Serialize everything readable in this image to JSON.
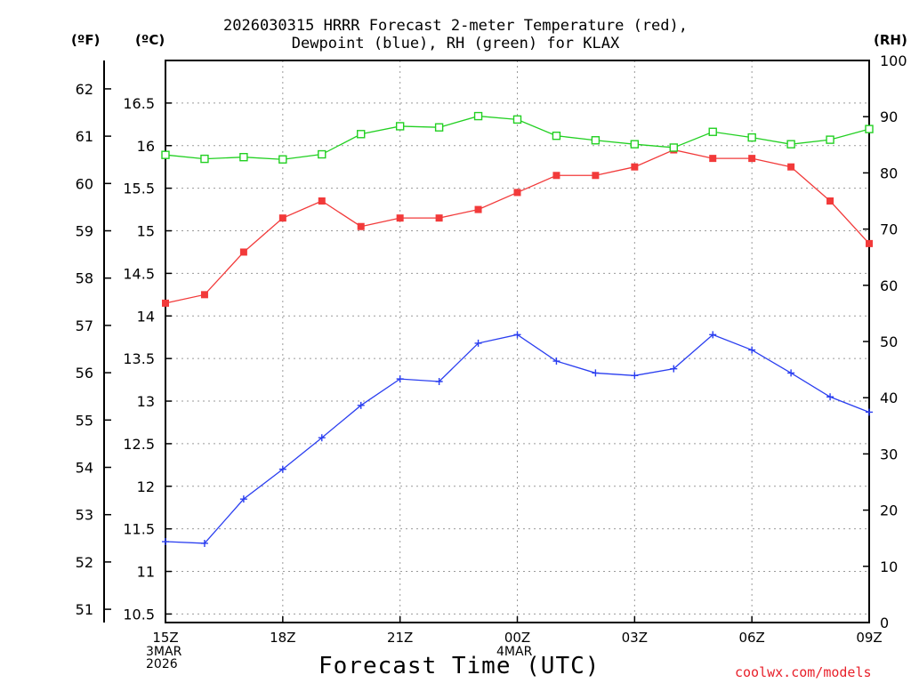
{
  "chart_data": {
    "type": "line",
    "title": [
      "2026030315 HRRR Forecast 2-meter Temperature (red),",
      "Dewpoint (blue), RH (green) for KLAX"
    ],
    "xlabel": "Forecast Time (UTC)",
    "units": {
      "fahrenheit": "(ºF)",
      "celsius": "(ºC)",
      "rh": "(RH)"
    },
    "x_ticks": [
      "15Z",
      "18Z",
      "21Z",
      "00Z",
      "03Z",
      "06Z",
      "09Z"
    ],
    "x_tick_hours": [
      0,
      3,
      6,
      9,
      12,
      15,
      18
    ],
    "date_labels": {
      "start": [
        "3MAR",
        "2026"
      ],
      "midnight": [
        "4MAR"
      ]
    },
    "hours": [
      0,
      1,
      2,
      3,
      4,
      5,
      6,
      7,
      8,
      9,
      10,
      11,
      12,
      13,
      14,
      15,
      16,
      17,
      18
    ],
    "celsius_axis": {
      "range": [
        10.4,
        17.0
      ],
      "ticks": [
        10.5,
        11,
        11.5,
        12,
        12.5,
        13,
        13.5,
        14,
        14.5,
        15,
        15.5,
        16,
        16.5
      ]
    },
    "fahrenheit_axis": {
      "ticks": [
        51,
        52,
        53,
        54,
        55,
        56,
        57,
        58,
        59,
        60,
        61,
        62
      ]
    },
    "rh_axis": {
      "range": [
        0,
        100
      ],
      "ticks": [
        0,
        10,
        20,
        30,
        40,
        50,
        60,
        70,
        80,
        90,
        100
      ]
    },
    "series": [
      {
        "name": "Temperature",
        "axis": "celsius",
        "color": "#f23a3a",
        "marker": "filled-square",
        "values": [
          14.15,
          14.25,
          14.75,
          15.15,
          15.35,
          15.05,
          15.15,
          15.15,
          15.25,
          15.45,
          15.65,
          15.65,
          15.75,
          15.95,
          15.85,
          15.85,
          15.75,
          15.35,
          14.85
        ]
      },
      {
        "name": "Dewpoint",
        "axis": "celsius",
        "color": "#2a3ef0",
        "marker": "plus",
        "values": [
          11.35,
          11.33,
          11.85,
          12.2,
          12.57,
          12.95,
          13.26,
          13.23,
          13.68,
          13.78,
          13.47,
          13.33,
          13.3,
          13.38,
          13.78,
          13.6,
          13.33,
          13.05,
          12.87
        ]
      },
      {
        "name": "RH",
        "axis": "rh",
        "color": "#22d022",
        "marker": "open-square",
        "values": [
          83.2,
          82.5,
          82.8,
          82.4,
          83.3,
          86.9,
          88.3,
          88.1,
          90.1,
          89.5,
          86.6,
          85.8,
          85.1,
          84.5,
          87.3,
          86.3,
          85.1,
          85.9,
          87.8
        ]
      }
    ]
  },
  "watermark": "coolwx.com/models"
}
